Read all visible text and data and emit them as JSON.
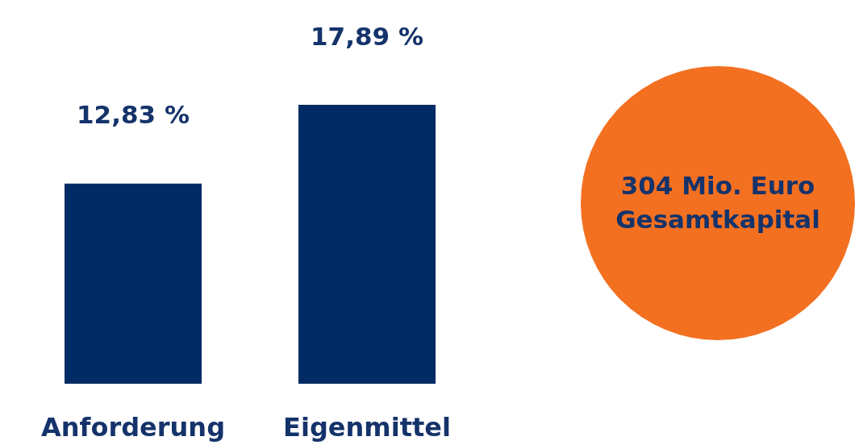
{
  "chart_data": {
    "type": "bar",
    "categories": [
      "Anforderung",
      "Eigenmittel"
    ],
    "values": [
      12.83,
      17.89
    ],
    "value_labels": [
      "12,83 %",
      "17,89 %"
    ],
    "color": "#002b64",
    "annotations": [
      "304 Mio. Euro\nGesamtkapital"
    ]
  }
}
